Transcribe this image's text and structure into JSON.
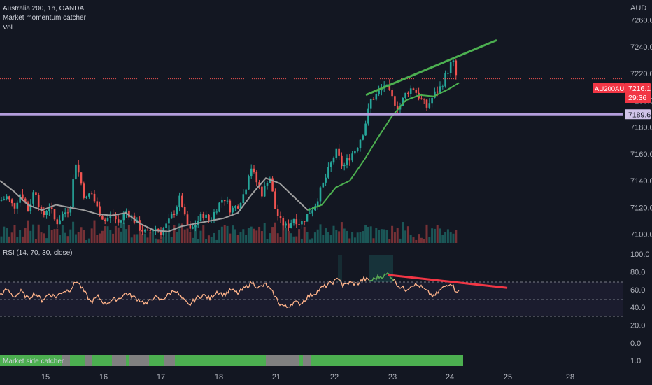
{
  "header": {
    "symbol_line": "Australia 200, 1h, OANDA",
    "indicator_1": "Market momentum catcher",
    "indicator_2": "Vol",
    "currency": "AUD"
  },
  "price_axis": {
    "ticks": [
      "7260.0",
      "7240.0",
      "7220.0",
      "7200.0",
      "7180.0",
      "7160.0",
      "7140.0",
      "7120.0",
      "7100.0"
    ],
    "last_price_tag": "AU200AUD",
    "last_price": "7216.1",
    "countdown": "29:36",
    "level_label": "7189.6"
  },
  "rsi_panel": {
    "title": "RSI (14, 70, 30, close)",
    "ticks": [
      "100.0",
      "80.0",
      "60.0",
      "40.0",
      "20.0",
      "0.0"
    ]
  },
  "catcher_panel": {
    "title": "Market side catcher",
    "tick": "1.0"
  },
  "time_axis": {
    "labels": [
      "15",
      "16",
      "17",
      "18",
      "21",
      "22",
      "23",
      "24",
      "25",
      "28"
    ]
  },
  "colors": {
    "background": "#131722",
    "up": "#26a69a",
    "down": "#ef5350",
    "level_line": "#b39ddb",
    "trend_green": "#4caf50",
    "trend_red": "#f23645",
    "ma_gray": "#9e9e9e",
    "ma_green": "#4caf50",
    "rsi_line": "#ffb38a",
    "catcher_green": "#4caf50",
    "catcher_gray": "#808080"
  },
  "chart_data": {
    "type": "candlestick",
    "price_range": [
      7093,
      7275
    ],
    "rsi_range": [
      0,
      100
    ],
    "level": 7189.6,
    "last_price": 7216.1,
    "close_path": [
      [
        0,
        7125
      ],
      [
        10,
        7128
      ],
      [
        20,
        7120
      ],
      [
        30,
        7132
      ],
      [
        40,
        7118
      ],
      [
        50,
        7135
      ],
      [
        60,
        7112
      ],
      [
        70,
        7122
      ],
      [
        80,
        7108
      ],
      [
        90,
        7115
      ],
      [
        100,
        7120
      ],
      [
        108,
        7155
      ],
      [
        115,
        7140
      ],
      [
        122,
        7125
      ],
      [
        130,
        7132
      ],
      [
        140,
        7118
      ],
      [
        150,
        7110
      ],
      [
        160,
        7115
      ],
      [
        170,
        7108
      ],
      [
        180,
        7118
      ],
      [
        190,
        7112
      ],
      [
        200,
        7105
      ],
      [
        210,
        7100
      ],
      [
        220,
        7105
      ],
      [
        230,
        7102
      ],
      [
        240,
        7108
      ],
      [
        250,
        7118
      ],
      [
        258,
        7128
      ],
      [
        265,
        7110
      ],
      [
        272,
        7102
      ],
      [
        280,
        7108
      ],
      [
        290,
        7115
      ],
      [
        300,
        7110
      ],
      [
        310,
        7120
      ],
      [
        320,
        7128
      ],
      [
        330,
        7118
      ],
      [
        340,
        7122
      ],
      [
        350,
        7132
      ],
      [
        358,
        7152
      ],
      [
        366,
        7140
      ],
      [
        375,
        7130
      ],
      [
        385,
        7145
      ],
      [
        393,
        7120
      ],
      [
        400,
        7110
      ],
      [
        410,
        7105
      ],
      [
        420,
        7112
      ],
      [
        430,
        7108
      ],
      [
        440,
        7115
      ],
      [
        450,
        7122
      ],
      [
        460,
        7135
      ],
      [
        470,
        7148
      ],
      [
        480,
        7162
      ],
      [
        490,
        7150
      ],
      [
        500,
        7158
      ],
      [
        510,
        7165
      ],
      [
        520,
        7178
      ],
      [
        530,
        7200
      ],
      [
        540,
        7205
      ],
      [
        550,
        7212
      ],
      [
        560,
        7202
      ],
      [
        570,
        7194
      ],
      [
        580,
        7205
      ],
      [
        590,
        7210
      ],
      [
        600,
        7202
      ],
      [
        610,
        7195
      ],
      [
        620,
        7204
      ],
      [
        630,
        7210
      ],
      [
        640,
        7222
      ],
      [
        647,
        7230
      ],
      [
        652,
        7218
      ],
      [
        656,
        7216.1
      ]
    ],
    "moving_average": [
      [
        0,
        7140
      ],
      [
        20,
        7132
      ],
      [
        40,
        7122
      ],
      [
        60,
        7118
      ],
      [
        80,
        7122
      ],
      [
        100,
        7120
      ],
      [
        120,
        7118
      ],
      [
        140,
        7115
      ],
      [
        160,
        7114
      ],
      [
        180,
        7116
      ],
      [
        200,
        7108
      ],
      [
        220,
        7103
      ],
      [
        240,
        7102
      ],
      [
        260,
        7106
      ],
      [
        280,
        7108
      ],
      [
        300,
        7110
      ],
      [
        320,
        7112
      ],
      [
        340,
        7116
      ],
      [
        360,
        7130
      ],
      [
        380,
        7142
      ],
      [
        400,
        7138
      ],
      [
        420,
        7128
      ],
      [
        440,
        7118
      ],
      [
        460,
        7122
      ],
      [
        480,
        7135
      ],
      [
        500,
        7140
      ],
      [
        520,
        7155
      ],
      [
        540,
        7172
      ],
      [
        560,
        7188
      ],
      [
        580,
        7200
      ],
      [
        600,
        7204
      ],
      [
        620,
        7203
      ],
      [
        640,
        7208
      ],
      [
        656,
        7213
      ]
    ],
    "trendlines": [
      {
        "color": "green",
        "from": [
          523,
          7204
        ],
        "to": [
          710,
          7245
        ]
      },
      {
        "color": "red",
        "panel": "rsi",
        "from": [
          555,
          76.5
        ],
        "to": [
          725,
          62
        ]
      }
    ],
    "rsi": [
      [
        0,
        54
      ],
      [
        10,
        60
      ],
      [
        20,
        52
      ],
      [
        30,
        58
      ],
      [
        40,
        50
      ],
      [
        50,
        56
      ],
      [
        60,
        48
      ],
      [
        70,
        55
      ],
      [
        80,
        52
      ],
      [
        90,
        58
      ],
      [
        100,
        60
      ],
      [
        110,
        70
      ],
      [
        120,
        58
      ],
      [
        130,
        46
      ],
      [
        140,
        52
      ],
      [
        150,
        44
      ],
      [
        160,
        48
      ],
      [
        170,
        50
      ],
      [
        180,
        56
      ],
      [
        190,
        52
      ],
      [
        200,
        48
      ],
      [
        210,
        44
      ],
      [
        220,
        52
      ],
      [
        230,
        48
      ],
      [
        240,
        54
      ],
      [
        250,
        60
      ],
      [
        260,
        50
      ],
      [
        270,
        42
      ],
      [
        280,
        50
      ],
      [
        290,
        54
      ],
      [
        300,
        50
      ],
      [
        310,
        58
      ],
      [
        320,
        54
      ],
      [
        330,
        60
      ],
      [
        340,
        56
      ],
      [
        350,
        62
      ],
      [
        360,
        68
      ],
      [
        370,
        62
      ],
      [
        380,
        66
      ],
      [
        390,
        56
      ],
      [
        400,
        44
      ],
      [
        410,
        40
      ],
      [
        420,
        46
      ],
      [
        430,
        44
      ],
      [
        440,
        52
      ],
      [
        450,
        56
      ],
      [
        460,
        62
      ],
      [
        470,
        66
      ],
      [
        480,
        70
      ],
      [
        485,
        74
      ],
      [
        490,
        64
      ],
      [
        500,
        68
      ],
      [
        510,
        66
      ],
      [
        520,
        72
      ],
      [
        530,
        70
      ],
      [
        540,
        74
      ],
      [
        550,
        76
      ],
      [
        555,
        78
      ],
      [
        560,
        74
      ],
      [
        570,
        64
      ],
      [
        580,
        60
      ],
      [
        590,
        66
      ],
      [
        600,
        64
      ],
      [
        610,
        58
      ],
      [
        620,
        52
      ],
      [
        630,
        60
      ],
      [
        640,
        66
      ],
      [
        645,
        68
      ],
      [
        650,
        60
      ],
      [
        656,
        58
      ]
    ],
    "catcher_states": [
      [
        "green",
        0,
        88
      ],
      [
        "gray",
        88,
        100
      ],
      [
        "green",
        100,
        122
      ],
      [
        "gray",
        122,
        132
      ],
      [
        "green",
        132,
        160
      ],
      [
        "gray",
        160,
        180
      ],
      [
        "green",
        180,
        185
      ],
      [
        "gray",
        185,
        213
      ],
      [
        "green",
        213,
        235
      ],
      [
        "gray",
        235,
        250
      ],
      [
        "green",
        250,
        380
      ],
      [
        "gray",
        380,
        428
      ],
      [
        "green",
        428,
        433
      ],
      [
        "gray",
        433,
        445
      ],
      [
        "green",
        445,
        662
      ]
    ]
  }
}
